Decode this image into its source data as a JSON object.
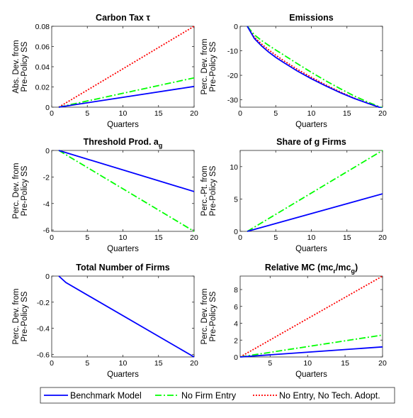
{
  "chart_data": [
    {
      "type": "line",
      "title": "Carbon Tax τ",
      "xlabel": "Quarters",
      "ylabel": [
        "Abs. Dev. from",
        "Pre-Policy SS"
      ],
      "xlim": [
        0,
        20
      ],
      "ylim": [
        0,
        0.08
      ],
      "xticks": [
        0,
        5,
        10,
        15,
        20
      ],
      "yticks": [
        0,
        0.02,
        0.04,
        0.06,
        0.08
      ],
      "ytick_labels": [
        "0",
        "0.02",
        "0.04",
        "0.06",
        "0.08"
      ],
      "series": [
        {
          "name": "Benchmark Model",
          "x": [
            1,
            20
          ],
          "y": [
            0,
            0.0205
          ]
        },
        {
          "name": "No Firm Entry",
          "x": [
            1,
            20
          ],
          "y": [
            0,
            0.029
          ]
        },
        {
          "name": "No Entry, No Tech. Adopt.",
          "x": [
            1,
            20
          ],
          "y": [
            0,
            0.08
          ]
        }
      ]
    },
    {
      "type": "line",
      "title": "Emissions",
      "xlabel": "Quarters",
      "ylabel": [
        "Perc. Dev. from",
        "Pre-Policy SS"
      ],
      "xlim": [
        0,
        20
      ],
      "ylim": [
        -33,
        0
      ],
      "xticks": [
        0,
        5,
        10,
        15,
        20
      ],
      "yticks": [
        -30,
        -20,
        -10,
        0
      ],
      "ytick_labels": [
        "-30",
        "-20",
        "-10",
        "0"
      ],
      "series": [
        {
          "name": "Benchmark Model",
          "x": [
            1,
            2,
            3,
            4,
            5,
            6,
            8,
            10,
            12,
            14,
            16,
            18,
            20
          ],
          "y": [
            0,
            -5,
            -8,
            -10.5,
            -12.7,
            -14.6,
            -18.2,
            -21.4,
            -24.3,
            -27,
            -29.4,
            -31.5,
            -33.5
          ]
        },
        {
          "name": "No Firm Entry",
          "x": [
            1,
            2,
            3,
            4,
            5,
            6,
            8,
            10,
            12,
            14,
            16,
            18,
            20
          ],
          "y": [
            0,
            -3.5,
            -5.8,
            -7.8,
            -9.7,
            -11.5,
            -15.2,
            -18.8,
            -22.2,
            -25.4,
            -28.4,
            -31,
            -33.3
          ]
        },
        {
          "name": "No Entry, No Tech. Adopt.",
          "x": [
            1,
            2,
            3,
            4,
            5,
            6,
            8,
            10,
            12,
            14,
            16,
            18,
            20
          ],
          "y": [
            0,
            -4.5,
            -7.2,
            -9.6,
            -11.8,
            -13.8,
            -17.5,
            -20.8,
            -23.9,
            -26.7,
            -29.3,
            -31.5,
            -33.5
          ]
        }
      ]
    },
    {
      "type": "line",
      "title": "Threshold Prod. a",
      "title_sub": "g",
      "xlabel": "Quarters",
      "ylabel": [
        "Perc. Dev. from",
        "Pre-Policy SS"
      ],
      "xlim": [
        0,
        20
      ],
      "ylim": [
        -6.1,
        0
      ],
      "xticks": [
        0,
        5,
        10,
        15,
        20
      ],
      "yticks": [
        -6,
        -4,
        -2,
        0
      ],
      "ytick_labels": [
        "-6",
        "-4",
        "-2",
        "0"
      ],
      "series": [
        {
          "name": "Benchmark Model",
          "x": [
            1,
            20
          ],
          "y": [
            0,
            -3.1
          ]
        },
        {
          "name": "No Firm Entry",
          "x": [
            1,
            20
          ],
          "y": [
            0,
            -6.1
          ]
        }
      ]
    },
    {
      "type": "line",
      "title": "Share of g Firms",
      "xlabel": "Quarters",
      "ylabel": [
        "Perc.-Pt. from",
        "Pre-Policy SS"
      ],
      "xlim": [
        0,
        20
      ],
      "ylim": [
        0,
        12.5
      ],
      "xticks": [
        0,
        5,
        10,
        15,
        20
      ],
      "yticks": [
        0,
        5,
        10
      ],
      "ytick_labels": [
        "0",
        "5",
        "10"
      ],
      "series": [
        {
          "name": "Benchmark Model",
          "x": [
            1,
            20
          ],
          "y": [
            0,
            5.8
          ]
        },
        {
          "name": "No Firm Entry",
          "x": [
            1,
            20
          ],
          "y": [
            0,
            12.5
          ]
        }
      ]
    },
    {
      "type": "line",
      "title": "Total Number of Firms",
      "xlabel": "Quarters",
      "ylabel": [
        "Perc. Dev. from",
        "Pre-Policy SS"
      ],
      "xlim": [
        0,
        20
      ],
      "ylim": [
        -0.62,
        0
      ],
      "xticks": [
        0,
        5,
        10,
        15,
        20
      ],
      "yticks": [
        -0.6,
        -0.4,
        -0.2,
        0
      ],
      "ytick_labels": [
        "-0.6",
        "-0.4",
        "-0.2",
        "0"
      ],
      "series": [
        {
          "name": "Benchmark Model",
          "x": [
            1,
            2,
            20
          ],
          "y": [
            0,
            -0.05,
            -0.62
          ]
        }
      ]
    },
    {
      "type": "line",
      "title": "Relative MC (mc",
      "title_parts": [
        "r",
        "/mc",
        "g",
        ")"
      ],
      "xlabel": "Quarters",
      "ylabel": [
        "Perc. Dev. from",
        "Pre-Policy SS"
      ],
      "xlim": [
        1,
        20
      ],
      "ylim": [
        0,
        9.6
      ],
      "xticks": [
        5,
        10,
        15,
        20
      ],
      "yticks": [
        0,
        2,
        4,
        6,
        8
      ],
      "ytick_labels": [
        "0",
        "2",
        "4",
        "6",
        "8"
      ],
      "series": [
        {
          "name": "Benchmark Model",
          "x": [
            1,
            20
          ],
          "y": [
            0,
            1.2
          ]
        },
        {
          "name": "No Firm Entry",
          "x": [
            1,
            20
          ],
          "y": [
            0,
            2.6
          ]
        },
        {
          "name": "No Entry, No Tech. Adopt.",
          "x": [
            1,
            20
          ],
          "y": [
            0,
            9.6
          ]
        }
      ]
    }
  ],
  "styles": {
    "Benchmark Model": {
      "color": "#0000ff",
      "dash": ""
    },
    "No Firm Entry": {
      "color": "#00ff00",
      "dash": "9,3,2,3"
    },
    "No Entry, No Tech. Adopt.": {
      "color": "#ff0000",
      "dash": "2,2"
    }
  },
  "legend": {
    "placement": "bottom",
    "items": [
      "Benchmark Model",
      "No Firm Entry",
      "No Entry, No Tech. Adopt."
    ]
  }
}
